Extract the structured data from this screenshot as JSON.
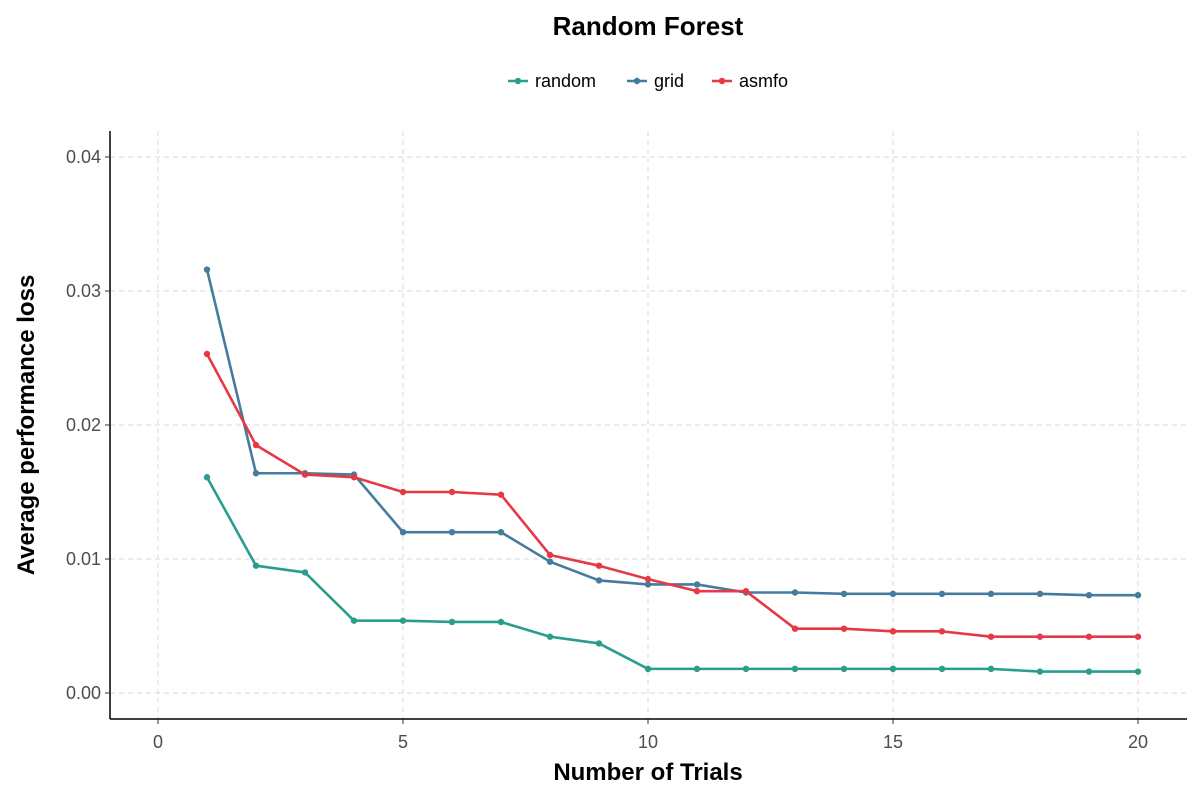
{
  "chart_data": {
    "type": "line",
    "title": "Random Forest",
    "xlabel": "Number of Trials",
    "ylabel": "Average performance loss",
    "xlim": [
      0,
      20
    ],
    "ylim": [
      0,
      0.04
    ],
    "x_ticks": [
      0,
      5,
      10,
      15,
      20
    ],
    "x_tick_labels": [
      "0",
      "5",
      "10",
      "15",
      "20"
    ],
    "y_ticks": [
      0,
      0.01,
      0.02,
      0.03,
      0.04
    ],
    "y_tick_labels": [
      "0.00",
      "0.01",
      "0.02",
      "0.03",
      "0.04"
    ],
    "grid": true,
    "legend_position": "top",
    "x": [
      1,
      2,
      3,
      4,
      5,
      6,
      7,
      8,
      9,
      10,
      11,
      12,
      13,
      14,
      15,
      16,
      17,
      18,
      19,
      20
    ],
    "series": [
      {
        "name": "random",
        "color": "#2a9d8f",
        "values": [
          0.0161,
          0.0095,
          0.009,
          0.0054,
          0.0054,
          0.0053,
          0.0053,
          0.0042,
          0.0037,
          0.0018,
          0.0018,
          0.0018,
          0.0018,
          0.0018,
          0.0018,
          0.0018,
          0.0018,
          0.0016,
          0.0016,
          0.0016
        ]
      },
      {
        "name": "grid",
        "color": "#457b9d",
        "values": [
          0.0316,
          0.0164,
          0.0164,
          0.0163,
          0.012,
          0.012,
          0.012,
          0.0098,
          0.0084,
          0.0081,
          0.0081,
          0.0075,
          0.0075,
          0.0074,
          0.0074,
          0.0074,
          0.0074,
          0.0074,
          0.0073,
          0.0073
        ]
      },
      {
        "name": "asmfo",
        "color": "#e63946",
        "values": [
          0.0253,
          0.0185,
          0.0163,
          0.0161,
          0.015,
          0.015,
          0.0148,
          0.0103,
          0.0095,
          0.0085,
          0.0076,
          0.0076,
          0.0048,
          0.0048,
          0.0046,
          0.0046,
          0.0042,
          0.0042,
          0.0042,
          0.0042
        ]
      }
    ]
  }
}
